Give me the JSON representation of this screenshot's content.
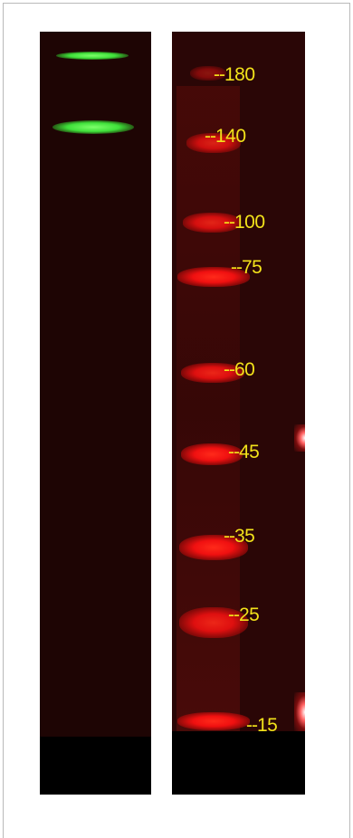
{
  "image": {
    "description_free": true,
    "left_lane_color": "#1e0504",
    "right_lane_color": "#2a0606",
    "band_colors": {
      "green": "#3fe03a",
      "red": "#f01010",
      "label": "#f2e21a"
    }
  },
  "markers": [
    {
      "label": "180"
    },
    {
      "label": "140"
    },
    {
      "label": "100"
    },
    {
      "label": "75"
    },
    {
      "label": "60"
    },
    {
      "label": "45"
    },
    {
      "label": "35"
    },
    {
      "label": "25"
    },
    {
      "label": "15"
    }
  ],
  "marker_prefix": "--"
}
